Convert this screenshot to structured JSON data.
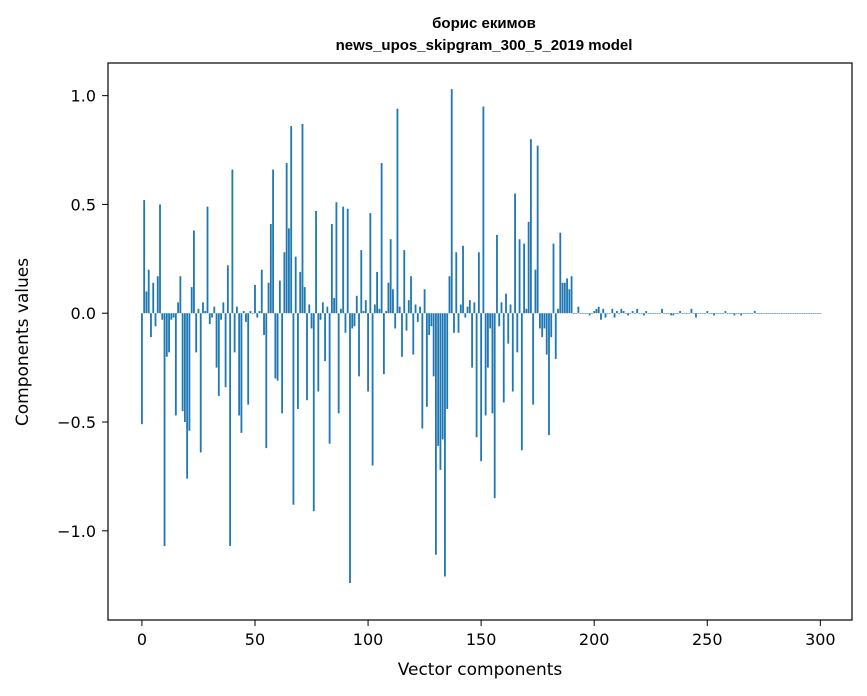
{
  "chart_data": {
    "type": "bar",
    "title": "борис екимов",
    "subtitle": "news_upos_skipgram_300_5_2019 model",
    "xlabel": "Vector components",
    "ylabel": "Components values",
    "xlim": [
      -15,
      314
    ],
    "ylim": [
      -1.41,
      1.15
    ],
    "xticks": [
      0,
      50,
      100,
      150,
      200,
      250,
      300
    ],
    "xtick_labels": [
      "0",
      "50",
      "100",
      "150",
      "200",
      "250",
      "300"
    ],
    "yticks": [
      -1.0,
      -0.5,
      0.0,
      0.5,
      1.0
    ],
    "ytick_labels": [
      "−1.0",
      "−0.5",
      "0.0",
      "0.5",
      "1.0"
    ],
    "grid": false,
    "bar_color": "#1f77b4",
    "values": [
      -0.51,
      0.52,
      0.1,
      0.2,
      -0.11,
      0.14,
      -0.06,
      0.17,
      0.5,
      -0.03,
      -1.07,
      -0.2,
      -0.18,
      -0.03,
      -0.02,
      -0.47,
      0.05,
      0.17,
      -0.45,
      -0.5,
      -0.76,
      -0.54,
      0.12,
      0.38,
      -0.18,
      0.02,
      -0.64,
      0.05,
      0.01,
      0.49,
      -0.05,
      -0.02,
      0.03,
      -0.25,
      -0.38,
      -0.03,
      0.05,
      -0.34,
      0.22,
      -1.07,
      0.66,
      -0.18,
      0.03,
      -0.47,
      -0.55,
      0.01,
      -0.04,
      -0.42,
      0.01,
      0.0,
      0.13,
      -0.02,
      0.01,
      0.2,
      -0.1,
      -0.62,
      0.14,
      0.41,
      0.66,
      -0.3,
      -0.31,
      0.15,
      -0.46,
      0.28,
      0.69,
      0.39,
      0.86,
      -0.88,
      0.26,
      -0.44,
      0.19,
      0.87,
      0.12,
      -0.4,
      0.04,
      -0.07,
      -0.91,
      0.47,
      -0.36,
      -0.03,
      0.05,
      -0.22,
      0.03,
      -0.6,
      0.41,
      0.07,
      0.51,
      -0.46,
      0.02,
      0.49,
      -0.09,
      0.48,
      -1.24,
      -0.07,
      -0.06,
      0.08,
      -0.29,
      0.29,
      0.01,
      0.06,
      -0.36,
      0.46,
      -0.7,
      0.04,
      0.19,
      0.02,
      0.69,
      -0.28,
      0.01,
      0.14,
      0.34,
      0.11,
      -0.07,
      0.94,
      0.03,
      -0.2,
      0.29,
      -0.08,
      0.06,
      0.17,
      -0.19,
      0.04,
      -0.04,
      0.03,
      -0.53,
      0.11,
      -0.43,
      -0.1,
      -0.06,
      -0.29,
      -1.11,
      -0.61,
      -0.72,
      -0.58,
      -1.21,
      -0.44,
      0.17,
      1.03,
      -0.09,
      0.28,
      -0.09,
      0.04,
      0.31,
      -0.02,
      0.03,
      0.06,
      -0.25,
      0.05,
      -0.57,
      0.28,
      -0.68,
      0.95,
      -0.47,
      -0.25,
      -0.07,
      -0.46,
      -0.85,
      0.36,
      -0.06,
      0.05,
      -0.41,
      0.09,
      -0.14,
      0.04,
      -0.36,
      0.55,
      -0.18,
      0.34,
      -0.63,
      0.32,
      0.02,
      0.42,
      0.8,
      -0.42,
      0.2,
      0.77,
      -0.07,
      -0.11,
      -0.07,
      -0.19,
      -0.56,
      -0.11,
      0.32,
      -0.21,
      0.02,
      0.37,
      0.14,
      0.14,
      0.16,
      0.11,
      0.17,
      0.0,
      0.0,
      0.03,
      0.0,
      0.0,
      0.0,
      0.0,
      -0.01,
      0.0,
      0.01,
      0.02,
      0.03,
      -0.03,
      0.02,
      -0.02,
      0.0,
      0.0,
      0.02,
      -0.02,
      0.01,
      0.0,
      0.02,
      0.01,
      0.0,
      -0.01,
      0.0,
      0.01,
      0.0,
      0.02,
      0.0,
      0.0,
      -0.01,
      0.01,
      0.0,
      0.0,
      0.0,
      0.0,
      0.0,
      0.0,
      0.02,
      0.0,
      0.0,
      0.0,
      -0.01,
      -0.01,
      0.0,
      0.0,
      0.01,
      0.0,
      0.0,
      0.0,
      0.0,
      0.02,
      0.0,
      -0.02,
      0.0,
      0.0,
      0.0,
      0.0,
      0.01,
      0.0,
      0.0,
      -0.01,
      0.0,
      0.0,
      0.0,
      0.0,
      0.01,
      0.0,
      0.0,
      0.0,
      -0.01,
      0.0,
      0.0,
      -0.01,
      0.0,
      0.0,
      0.0,
      0.0,
      0.0,
      0.01,
      0.0,
      0.0,
      0.0,
      0.0,
      0.0,
      0.0,
      0.0,
      0.0,
      0.0,
      0.0,
      0.0,
      0.0,
      0.0,
      0.0,
      0.0,
      0.0,
      0.0,
      0.0,
      0.0,
      0.0,
      0.0,
      0.0,
      0.0,
      0.0,
      0.0,
      0.0,
      0.0,
      0.0,
      0.0
    ]
  }
}
